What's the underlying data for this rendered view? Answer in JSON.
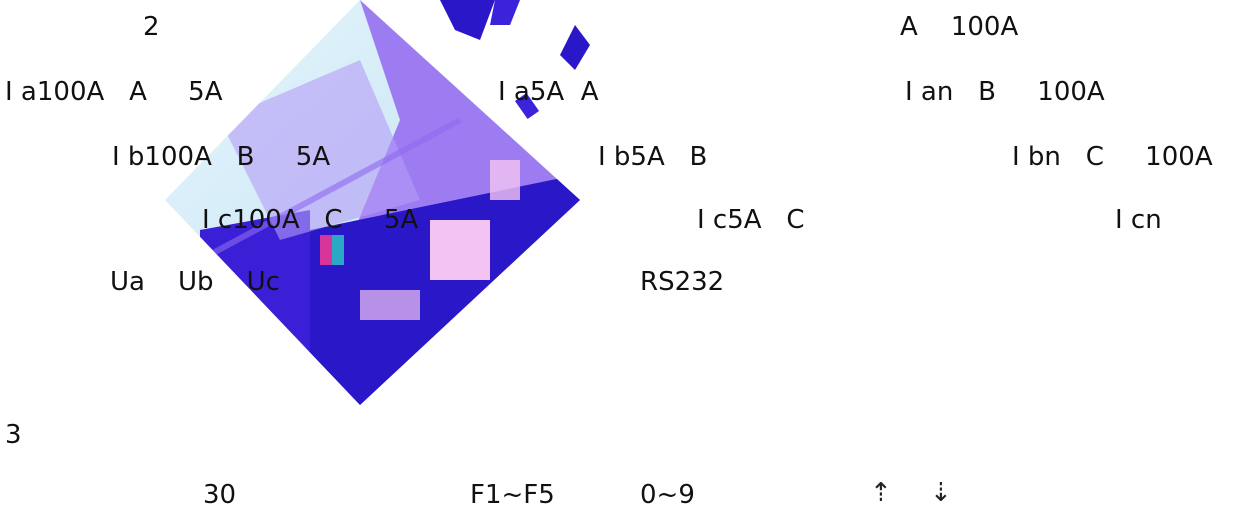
{
  "document": {
    "section_2_number": "2",
    "row1": {
      "right": "A    100A"
    },
    "row2": {
      "left": "I a100A   A     5A",
      "middle": "I a5A  A",
      "right": "I an   B     100A"
    },
    "row3": {
      "left": "I b100A   B     5A",
      "middle": "I b5A   B",
      "right": "I bn   C     100A"
    },
    "row4": {
      "left": "I c100A   C     5A",
      "middle": "I c5A   C",
      "right": "I cn"
    },
    "row5": {
      "left": "Ua    Ub    Uc",
      "middle": "RS232"
    },
    "section_3_number": "3",
    "row6": {
      "a": "30",
      "b": "F1~F5",
      "c": "0~9"
    },
    "arrows": {
      "up": "⇡",
      "down": "⇣"
    },
    "watermark_colors": {
      "light_blue": "#cfe9f7",
      "violet": "#9d7cf2",
      "deep_blue": "#2a17c8",
      "pink": "#f3c4f3"
    }
  }
}
